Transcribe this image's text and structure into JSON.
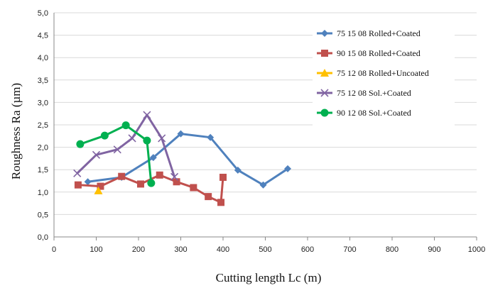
{
  "chart_data": {
    "type": "line",
    "title": "",
    "xlabel": "Cutting length Lc (m)",
    "ylabel": "Roughness Ra (µm)",
    "xlim": [
      0,
      1000
    ],
    "ylim": [
      0,
      5
    ],
    "x_ticks": [
      "0",
      "100",
      "200",
      "300",
      "400",
      "500",
      "600",
      "700",
      "800",
      "900",
      "1000"
    ],
    "y_ticks": [
      "0,0",
      "0,5",
      "1,0",
      "1,5",
      "2,0",
      "2,5",
      "3,0",
      "3,5",
      "4,0",
      "4,5",
      "5,0"
    ],
    "grid": "horizontal",
    "legend_position": "top-right",
    "series": [
      {
        "name": "75 15 08 Rolled+Coated",
        "color": "#4F81BD",
        "marker": "diamond",
        "points": [
          [
            80,
            1.23
          ],
          [
            160,
            1.33
          ],
          [
            235,
            1.77
          ],
          [
            300,
            2.3
          ],
          [
            370,
            2.22
          ],
          [
            435,
            1.49
          ],
          [
            495,
            1.16
          ],
          [
            553,
            1.52
          ]
        ]
      },
      {
        "name": "90 15 08 Rolled+Coated",
        "color": "#C0504D",
        "marker": "square",
        "points": [
          [
            57,
            1.16
          ],
          [
            110,
            1.13
          ],
          [
            160,
            1.35
          ],
          [
            205,
            1.18
          ],
          [
            250,
            1.38
          ],
          [
            290,
            1.23
          ],
          [
            330,
            1.1
          ],
          [
            365,
            0.9
          ],
          [
            395,
            0.77
          ],
          [
            400,
            1.33
          ]
        ]
      },
      {
        "name": "75 12 08 Rolled+Uncoated",
        "color": "#FFC000",
        "marker": "triangle",
        "points": [
          [
            105,
            1.03
          ]
        ]
      },
      {
        "name": "75 12 08 Sol.+Coated",
        "color": "#8064A2",
        "marker": "x",
        "points": [
          [
            55,
            1.42
          ],
          [
            100,
            1.83
          ],
          [
            150,
            1.95
          ],
          [
            185,
            2.2
          ],
          [
            220,
            2.72
          ],
          [
            255,
            2.2
          ],
          [
            285,
            1.34
          ]
        ]
      },
      {
        "name": "90 12 08 Sol.+Coated",
        "color": "#00B050",
        "marker": "circle",
        "points": [
          [
            62,
            2.07
          ],
          [
            120,
            2.26
          ],
          [
            170,
            2.49
          ],
          [
            220,
            2.15
          ],
          [
            230,
            1.2
          ]
        ]
      }
    ]
  }
}
